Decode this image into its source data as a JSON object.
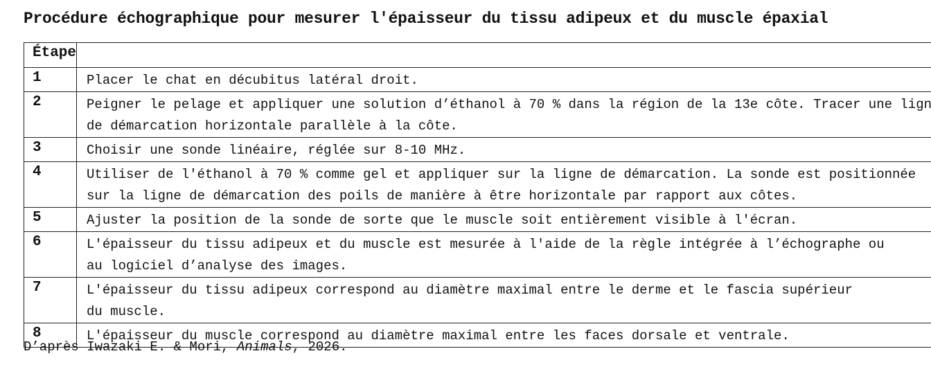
{
  "title": "Procédure échographique pour mesurer l'épaisseur du tissu adipeux et du muscle épaxial",
  "table": {
    "header": {
      "step": "Étape",
      "description": ""
    },
    "rows": [
      {
        "step": "1",
        "lines": [
          "Placer le chat en décubitus latéral droit."
        ]
      },
      {
        "step": "2",
        "lines": [
          "Peigner le pelage et appliquer une solution d’éthanol à 70 % dans la région de la 13e côte. Tracer une ligne",
          "de démarcation horizontale parallèle à la côte."
        ]
      },
      {
        "step": "3",
        "lines": [
          "Choisir une sonde linéaire, réglée sur 8-10 MHz."
        ]
      },
      {
        "step": "4",
        "lines": [
          "Utiliser de l'éthanol à 70 % comme gel et appliquer sur la ligne de démarcation. La sonde est positionnée",
          "sur la ligne de démarcation des poils de manière à être horizontale par rapport aux côtes."
        ]
      },
      {
        "step": "5",
        "lines": [
          "Ajuster la position de la sonde de sorte que le muscle soit entièrement visible à l'écran."
        ]
      },
      {
        "step": "6",
        "lines": [
          "L'épaisseur du tissu adipeux et du muscle est mesurée à l'aide de la règle intégrée à l’échographe ou",
          "au logiciel d’analyse des images."
        ]
      },
      {
        "step": "7",
        "lines": [
          "L'épaisseur du tissu adipeux correspond au diamètre maximal entre le derme et le fascia supérieur",
          "du muscle."
        ]
      },
      {
        "step": "8",
        "lines": [
          "L'épaisseur du muscle correspond au diamètre maximal entre les faces dorsale et ventrale."
        ]
      }
    ]
  },
  "source": {
    "prefix": "D’après Iwazaki E. & Mori, ",
    "journal": "Animals",
    "suffix": ", 2026."
  }
}
